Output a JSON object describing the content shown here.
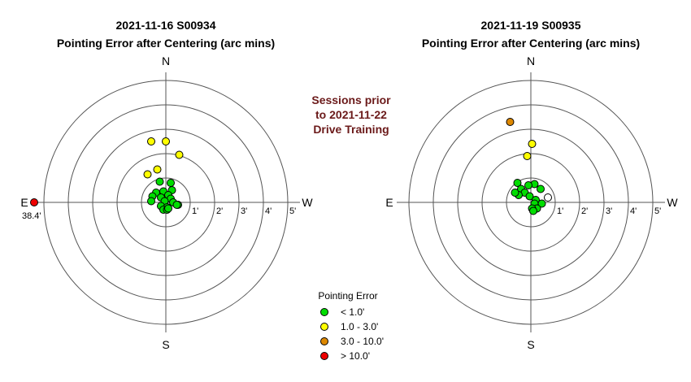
{
  "note": {
    "lines": [
      "Sessions prior",
      "to 2021-11-22",
      "Drive Training"
    ]
  },
  "legend": {
    "title": "Pointing Error",
    "items": [
      {
        "label": "< 1.0'",
        "color": "#00dd00"
      },
      {
        "label": "1.0 - 3.0'",
        "color": "#ffff00"
      },
      {
        "label": "3.0 - 10.0'",
        "color": "#dd8800"
      },
      {
        "label": "> 10.0'",
        "color": "#ee0000"
      }
    ]
  },
  "chart_data": [
    {
      "type": "scatter",
      "title": "2021-11-16 S00934",
      "subtitle": "Pointing Error after Centering (arc mins)",
      "directions": {
        "N": "N",
        "S": "S",
        "E": "E",
        "W": "W"
      },
      "ring_labels": [
        "1'",
        "2'",
        "3'",
        "4'",
        "5'"
      ],
      "rlim": [
        0,
        5
      ],
      "outlier_label": "38.4'",
      "points": [
        {
          "x": -0.6,
          "y": 2.5,
          "color": "#ffff00"
        },
        {
          "x": 0.0,
          "y": 2.5,
          "color": "#ffff00"
        },
        {
          "x": 0.55,
          "y": 1.95,
          "color": "#ffff00"
        },
        {
          "x": -0.35,
          "y": 1.35,
          "color": "#ffff00"
        },
        {
          "x": -0.75,
          "y": 1.15,
          "color": "#ffff00"
        },
        {
          "x": -0.25,
          "y": 0.85,
          "color": "#00dd00"
        },
        {
          "x": 0.2,
          "y": 0.8,
          "color": "#00dd00"
        },
        {
          "x": 0.25,
          "y": 0.5,
          "color": "#00dd00"
        },
        {
          "x": -0.4,
          "y": 0.4,
          "color": "#00dd00"
        },
        {
          "x": -0.1,
          "y": 0.45,
          "color": "#00dd00"
        },
        {
          "x": 0.1,
          "y": 0.3,
          "color": "#00dd00"
        },
        {
          "x": -0.55,
          "y": 0.25,
          "color": "#00dd00"
        },
        {
          "x": -0.2,
          "y": 0.2,
          "color": "#00dd00"
        },
        {
          "x": 0.2,
          "y": 0.15,
          "color": "#00dd00"
        },
        {
          "x": -0.6,
          "y": 0.05,
          "color": "#00dd00"
        },
        {
          "x": -0.05,
          "y": 0.05,
          "color": "#00dd00"
        },
        {
          "x": 0.3,
          "y": 0.0,
          "color": "#00dd00"
        },
        {
          "x": -0.2,
          "y": -0.15,
          "color": "#00dd00"
        },
        {
          "x": 0.05,
          "y": -0.2,
          "color": "#00dd00"
        },
        {
          "x": -0.1,
          "y": -0.3,
          "color": "#00dd00"
        },
        {
          "x": 0.5,
          "y": -0.1,
          "color": "#00dd00"
        },
        {
          "x": 0.45,
          "y": -0.1,
          "color": "#00dd00"
        },
        {
          "x": 0.05,
          "y": -0.3,
          "color": "#00dd00"
        },
        {
          "x": 0.1,
          "y": -0.25,
          "color": "#00dd00"
        },
        {
          "x": -6.0,
          "y": 0.0,
          "color": "#ee0000"
        }
      ]
    },
    {
      "type": "scatter",
      "title": "2021-11-19 S00935",
      "subtitle": "Pointing Error after Centering (arc mins)",
      "directions": {
        "N": "N",
        "S": "S",
        "E": "E",
        "W": "W"
      },
      "ring_labels": [
        "1'",
        "2'",
        "3'",
        "4'",
        "5'"
      ],
      "rlim": [
        0,
        5
      ],
      "points": [
        {
          "x": -0.85,
          "y": 3.3,
          "color": "#dd8800"
        },
        {
          "x": 0.05,
          "y": 2.4,
          "color": "#ffff00"
        },
        {
          "x": -0.15,
          "y": 1.9,
          "color": "#ffff00"
        },
        {
          "x": -0.55,
          "y": 0.8,
          "color": "#00dd00"
        },
        {
          "x": 0.15,
          "y": 0.75,
          "color": "#00dd00"
        },
        {
          "x": -0.4,
          "y": 0.55,
          "color": "#00dd00"
        },
        {
          "x": 0.4,
          "y": 0.55,
          "color": "#00dd00"
        },
        {
          "x": -0.1,
          "y": 0.7,
          "color": "#00dd00"
        },
        {
          "x": -0.25,
          "y": 0.4,
          "color": "#00dd00"
        },
        {
          "x": -0.5,
          "y": 0.3,
          "color": "#00dd00"
        },
        {
          "x": -0.65,
          "y": 0.4,
          "color": "#00dd00"
        },
        {
          "x": -0.05,
          "y": 0.25,
          "color": "#00dd00"
        },
        {
          "x": 0.2,
          "y": 0.1,
          "color": "#00dd00"
        },
        {
          "x": 0.15,
          "y": -0.05,
          "color": "#00dd00"
        },
        {
          "x": 0.45,
          "y": -0.05,
          "color": "#00dd00"
        },
        {
          "x": 0.25,
          "y": -0.25,
          "color": "#00dd00"
        },
        {
          "x": 0.05,
          "y": -0.25,
          "color": "#00dd00"
        },
        {
          "x": 0.1,
          "y": -0.35,
          "color": "#00dd00"
        },
        {
          "x": 0.7,
          "y": 0.2,
          "color": "#ffffff"
        }
      ]
    }
  ]
}
